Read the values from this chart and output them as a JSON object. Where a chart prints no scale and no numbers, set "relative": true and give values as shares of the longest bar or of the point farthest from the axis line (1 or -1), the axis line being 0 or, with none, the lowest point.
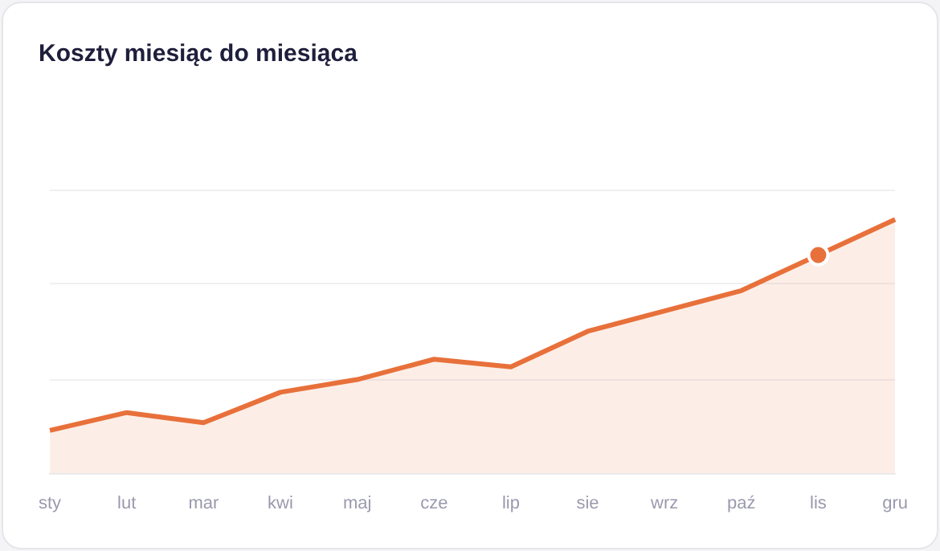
{
  "chart_data": {
    "type": "area",
    "title": "Koszty miesiąc do miesiąca",
    "categories": [
      "sty",
      "lut",
      "mar",
      "kwi",
      "maj",
      "cze",
      "lip",
      "sie",
      "wrz",
      "paź",
      "lis",
      "gru"
    ],
    "relative": true,
    "legend": false,
    "ref_lines": [
      {
        "axis": "y",
        "value": 0.37,
        "color": "#f0f0f3"
      },
      {
        "axis": "y",
        "value": 0.75,
        "color": "#f0f0f3"
      },
      {
        "axis": "y",
        "value": 1.12,
        "color": "#f0f0f3"
      }
    ],
    "tick_labels": "x",
    "marker": "none",
    "line_style": "solid",
    "series": [
      {
        "color": "#e8703a",
        "values": [
          0.17,
          0.24,
          0.2,
          0.32,
          0.37,
          0.45,
          0.42,
          0.56,
          0.64,
          0.72,
          0.86,
          1
        ]
      },
      {
        "type": "scatter",
        "x": [
          "lis"
        ],
        "color": "#e8703a",
        "marker": "circle",
        "values": [
          0.86
        ]
      }
    ]
  }
}
